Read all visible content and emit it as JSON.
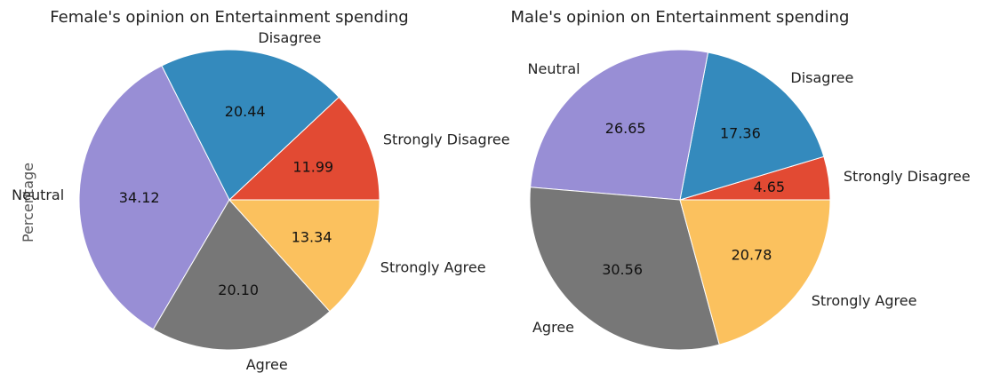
{
  "chart_data": [
    {
      "type": "pie",
      "title": "Female's opinion on Entertainment spending",
      "ylabel": "Percentage",
      "categories": [
        "Strongly Disagree",
        "Disagree",
        "Neutral",
        "Agree",
        "Strongly Agree"
      ],
      "values": [
        11.99,
        20.44,
        34.12,
        20.1,
        13.34
      ],
      "value_labels": [
        "11.99",
        "20.44",
        "34.12",
        "20.10",
        "13.34"
      ],
      "colors": [
        "#E24A33",
        "#348ABD",
        "#988ED5",
        "#777777",
        "#FBC15E"
      ]
    },
    {
      "type": "pie",
      "title": "Male's opinion on Entertainment spending",
      "categories": [
        "Strongly Disagree",
        "Disagree",
        "Neutral",
        "Agree",
        "Strongly Agree"
      ],
      "values": [
        4.65,
        17.36,
        26.65,
        30.56,
        20.78
      ],
      "value_labels": [
        "4.65",
        "17.36",
        "26.65",
        "30.56",
        "20.78"
      ],
      "colors": [
        "#E24A33",
        "#348ABD",
        "#988ED5",
        "#777777",
        "#FBC15E"
      ]
    }
  ]
}
